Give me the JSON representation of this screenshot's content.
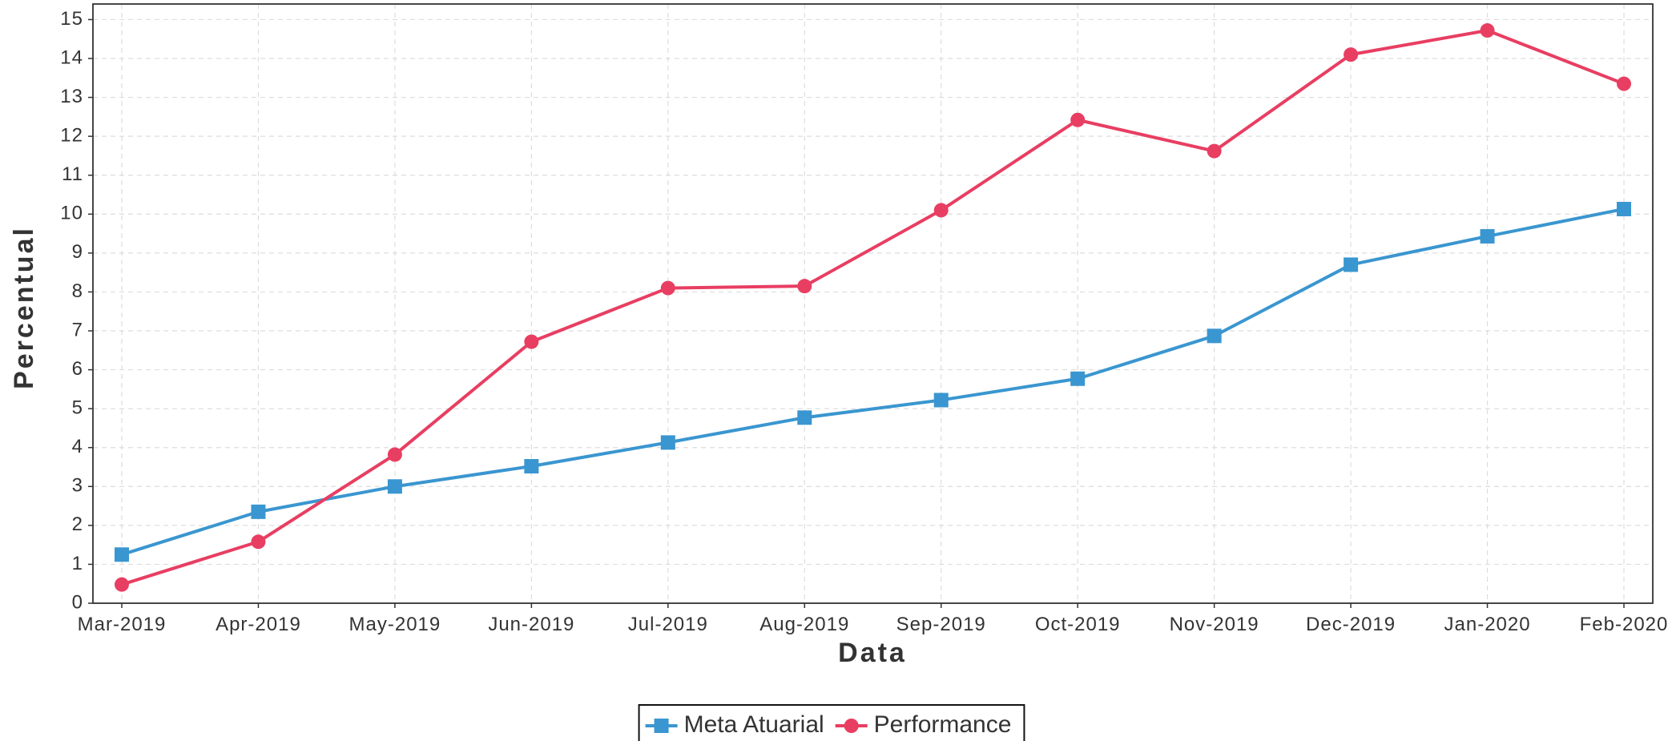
{
  "chart_data": {
    "type": "line",
    "x_label": "Data",
    "y_label": "Percentual",
    "categories": [
      "Mar-2019",
      "Apr-2019",
      "May-2019",
      "Jun-2019",
      "Jul-2019",
      "Aug-2019",
      "Sep-2019",
      "Oct-2019",
      "Nov-2019",
      "Dec-2019",
      "Jan-2020",
      "Feb-2020"
    ],
    "series": [
      {
        "name": "Meta Atuarial",
        "color": "#3a96d0",
        "marker": "square",
        "values": [
          1.25,
          2.35,
          3.0,
          3.52,
          4.13,
          4.77,
          5.22,
          5.77,
          6.87,
          8.7,
          9.43,
          10.13
        ]
      },
      {
        "name": "Performance",
        "color": "#e83e62",
        "marker": "circle",
        "values": [
          0.48,
          1.58,
          3.82,
          6.72,
          8.1,
          8.15,
          10.1,
          12.42,
          11.62,
          14.1,
          14.72,
          13.35
        ]
      }
    ],
    "ylim": [
      0,
      15.4
    ],
    "yticks": [
      0,
      1,
      2,
      3,
      4,
      5,
      6,
      7,
      8,
      9,
      10,
      11,
      12,
      13,
      14,
      15
    ],
    "grid": true,
    "legend": "bottom"
  }
}
